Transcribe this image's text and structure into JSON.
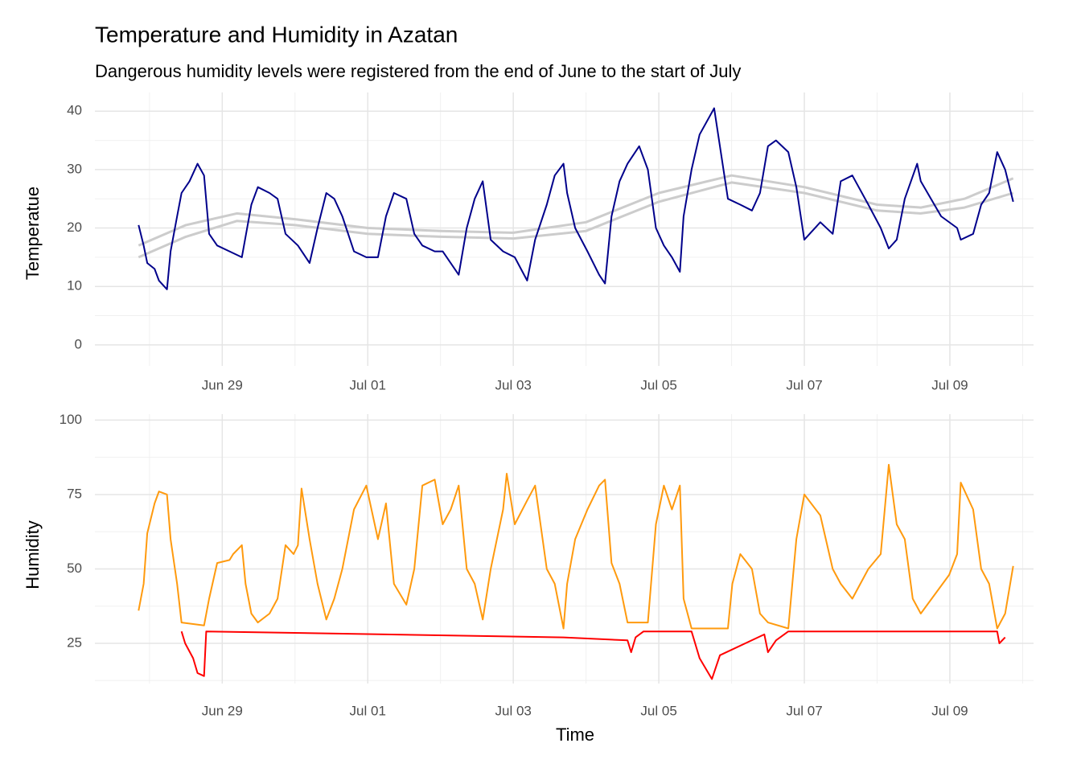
{
  "chart_data": [
    {
      "type": "line",
      "title": "Temperature and Humidity in Azatan",
      "subtitle": "Dangerous humidity levels were registered from the end of June to the start of July",
      "y_label": "Temperatue",
      "xlim": [
        27.25,
        40.15
      ],
      "xticks": [
        {
          "value": 29,
          "label": "Jun 29"
        },
        {
          "value": 31,
          "label": "Jul 01"
        },
        {
          "value": 33,
          "label": "Jul 03"
        },
        {
          "value": 35,
          "label": "Jul 05"
        },
        {
          "value": 37,
          "label": "Jul 07"
        },
        {
          "value": 39,
          "label": "Jul 09"
        }
      ],
      "ylim": [
        -3.6,
        43.2
      ],
      "yticks": [
        0,
        10,
        20,
        30,
        40
      ],
      "grid": true,
      "series": [
        {
          "color": "#cccccc",
          "x": [
            27.85,
            28.5,
            29.2,
            30,
            31,
            32,
            33,
            34,
            35,
            36,
            37,
            38,
            38.6,
            39.2,
            39.87
          ],
          "values": [
            17,
            20.5,
            22.5,
            21.5,
            20,
            19.5,
            19.2,
            21,
            26,
            29,
            27,
            24,
            23.5,
            25,
            28.5
          ]
        },
        {
          "color": "#cccccc",
          "x": [
            27.85,
            28.5,
            29.2,
            30,
            31,
            32,
            33,
            34,
            35,
            36,
            37,
            38,
            38.6,
            39.2,
            39.87
          ],
          "values": [
            15,
            18.5,
            21.2,
            20.5,
            19,
            18.5,
            18.2,
            19.5,
            24.5,
            27.8,
            26,
            23,
            22.5,
            23.5,
            26
          ]
        },
        {
          "color": "#00008b",
          "x": [
            27.85,
            27.92,
            27.97,
            28.07,
            28.13,
            28.24,
            28.29,
            28.38,
            28.44,
            28.55,
            28.66,
            28.75,
            28.82,
            28.93,
            29.1,
            29.27,
            29.4,
            29.49,
            29.65,
            29.76,
            29.87,
            30.04,
            30.2,
            30.31,
            30.43,
            30.54,
            30.65,
            30.81,
            30.98,
            31.14,
            31.25,
            31.36,
            31.53,
            31.64,
            31.75,
            31.92,
            32.03,
            32.25,
            32.36,
            32.47,
            32.58,
            32.69,
            32.86,
            33.02,
            33.19,
            33.3,
            33.46,
            33.57,
            33.69,
            33.74,
            33.85,
            34.02,
            34.18,
            34.26,
            34.35,
            34.46,
            34.57,
            34.73,
            34.85,
            34.96,
            35.07,
            35.18,
            35.29,
            35.34,
            35.45,
            35.56,
            35.76,
            35.95,
            36.12,
            36.28,
            36.39,
            36.5,
            36.61,
            36.78,
            36.89,
            37.0,
            37.22,
            37.39,
            37.5,
            37.66,
            37.88,
            38.05,
            38.16,
            38.27,
            38.38,
            38.55,
            38.6,
            38.88,
            39.1,
            39.15,
            39.32,
            39.43,
            39.54,
            39.65,
            39.76,
            39.87
          ],
          "values": [
            20.5,
            17,
            14,
            13,
            11,
            9.5,
            16,
            22,
            26,
            28,
            31,
            29,
            19,
            17,
            16,
            15,
            24,
            27,
            26,
            25,
            19,
            17,
            14,
            20,
            26,
            25,
            22,
            16,
            15,
            15,
            22,
            26,
            25,
            19,
            17,
            16,
            16,
            12,
            20,
            25,
            28,
            18,
            16,
            15,
            11,
            18,
            24,
            29,
            31,
            26,
            20,
            16,
            12,
            10.5,
            22,
            28,
            31,
            34,
            30,
            20,
            17,
            15,
            12.5,
            22,
            30,
            36,
            40.5,
            25,
            24,
            23,
            26,
            34,
            35,
            33,
            27,
            18,
            21,
            19,
            28,
            29,
            24,
            20,
            16.5,
            18,
            25,
            31,
            28,
            22,
            20,
            18,
            19,
            24,
            26,
            33,
            30,
            24.5
          ]
        }
      ]
    },
    {
      "type": "line",
      "x_label": "Time",
      "y_label": "Humidity",
      "xlim": [
        27.25,
        40.15
      ],
      "xticks": [
        {
          "value": 29,
          "label": "Jun 29"
        },
        {
          "value": 31,
          "label": "Jul 01"
        },
        {
          "value": 33,
          "label": "Jul 03"
        },
        {
          "value": 35,
          "label": "Jul 05"
        },
        {
          "value": 37,
          "label": "Jul 07"
        },
        {
          "value": 39,
          "label": "Jul 09"
        }
      ],
      "ylim": [
        11.5,
        102
      ],
      "yticks": [
        25,
        50,
        75,
        100
      ],
      "grid": true,
      "series": [
        {
          "color": "#ff9a0e",
          "x": [
            27.85,
            27.92,
            27.97,
            28.07,
            28.13,
            28.24,
            28.29,
            28.38,
            28.44,
            28.75,
            28.82,
            28.93,
            29.1,
            29.15,
            29.27,
            29.32,
            29.4,
            29.49,
            29.65,
            29.76,
            29.87,
            29.98,
            30.04,
            30.09,
            30.2,
            30.31,
            30.43,
            30.54,
            30.65,
            30.81,
            30.98,
            31.14,
            31.25,
            31.36,
            31.53,
            31.64,
            31.75,
            31.92,
            32.03,
            32.14,
            32.25,
            32.36,
            32.47,
            32.58,
            32.69,
            32.86,
            32.91,
            33.02,
            33.19,
            33.3,
            33.46,
            33.57,
            33.69,
            33.74,
            33.85,
            34.02,
            34.18,
            34.26,
            34.35,
            34.46,
            34.57,
            34.85,
            34.96,
            35.07,
            35.18,
            35.29,
            35.34,
            35.45,
            35.95,
            36.01,
            36.12,
            36.28,
            36.39,
            36.5,
            36.78,
            36.89,
            37.0,
            37.22,
            37.39,
            37.5,
            37.66,
            37.88,
            38.05,
            38.16,
            38.27,
            38.38,
            38.49,
            38.6,
            38.99,
            39.1,
            39.15,
            39.32,
            39.43,
            39.54,
            39.65,
            39.76,
            39.87
          ],
          "values": [
            36,
            45,
            62,
            72,
            76,
            75,
            60,
            45,
            32,
            31,
            40,
            52,
            53,
            55,
            58,
            45,
            35,
            32,
            35,
            40,
            58,
            55,
            58,
            77,
            60,
            45,
            33,
            40,
            50,
            70,
            78,
            60,
            72,
            45,
            38,
            50,
            78,
            80,
            65,
            70,
            78,
            50,
            45,
            33,
            50,
            70,
            82,
            65,
            73,
            78,
            50,
            45,
            30,
            45,
            60,
            70,
            78,
            80,
            52,
            45,
            32,
            32,
            65,
            78,
            70,
            78,
            40,
            30,
            30,
            45,
            55,
            50,
            35,
            32,
            30,
            60,
            75,
            68,
            50,
            45,
            40,
            50,
            55,
            85,
            65,
            60,
            40,
            35,
            48,
            55,
            79,
            70,
            50,
            45,
            30,
            35,
            51
          ]
        },
        {
          "color": "#ff0000",
          "x": [
            28.44,
            28.49,
            28.6,
            28.66,
            28.75,
            28.78,
            33.69,
            34.57,
            34.62,
            34.68,
            34.79,
            35.45,
            35.56,
            35.73,
            35.84,
            36.45,
            36.5,
            36.61,
            36.78,
            39.65,
            39.68,
            39.76
          ],
          "values": [
            29,
            25,
            20,
            15,
            14,
            29,
            27,
            26,
            22,
            27,
            29,
            29,
            20,
            13,
            21,
            28,
            22,
            26,
            29,
            29,
            25,
            27
          ]
        }
      ]
    }
  ]
}
